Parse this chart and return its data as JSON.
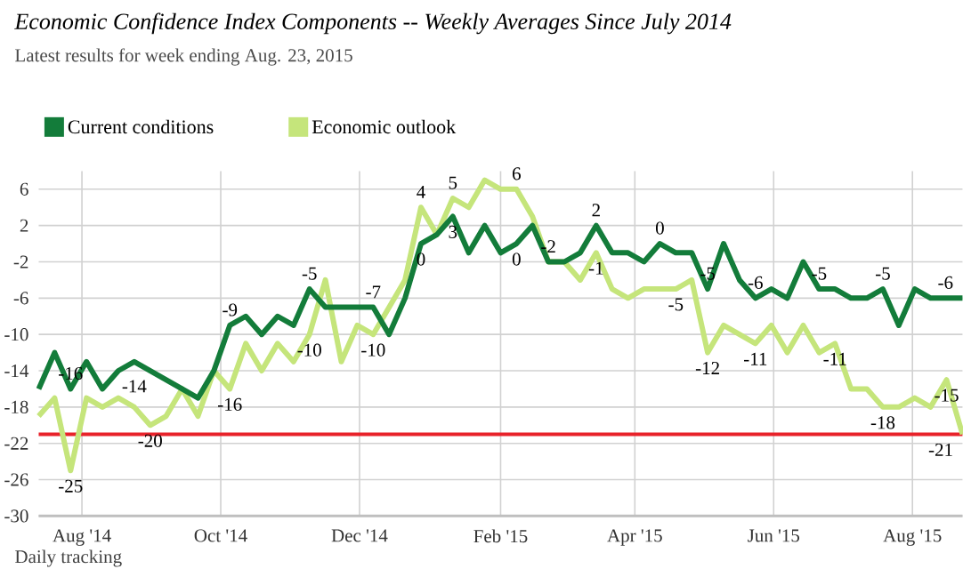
{
  "chart_data": {
    "type": "line",
    "title": "Economic Confidence Index Components -- Weekly Averages Since July 2014",
    "subtitle": "Latest results for week ending Aug. 23, 2015",
    "x": [
      "2014-07-13",
      "2014-07-20",
      "2014-07-27",
      "2014-08-03",
      "2014-08-10",
      "2014-08-17",
      "2014-08-24",
      "2014-08-31",
      "2014-09-07",
      "2014-09-14",
      "2014-09-21",
      "2014-09-28",
      "2014-10-05",
      "2014-10-12",
      "2014-10-19",
      "2014-10-26",
      "2014-11-02",
      "2014-11-09",
      "2014-11-16",
      "2014-11-23",
      "2014-11-30",
      "2014-12-07",
      "2014-12-14",
      "2014-12-21",
      "2014-12-28",
      "2015-01-04",
      "2015-01-11",
      "2015-01-18",
      "2015-01-25",
      "2015-02-01",
      "2015-02-08",
      "2015-02-15",
      "2015-02-22",
      "2015-03-01",
      "2015-03-08",
      "2015-03-15",
      "2015-03-22",
      "2015-03-29",
      "2015-04-05",
      "2015-04-12",
      "2015-04-19",
      "2015-04-26",
      "2015-05-03",
      "2015-05-10",
      "2015-05-17",
      "2015-05-24",
      "2015-05-31",
      "2015-06-07",
      "2015-06-14",
      "2015-06-21",
      "2015-06-28",
      "2015-07-05",
      "2015-07-12",
      "2015-07-19",
      "2015-07-26",
      "2015-08-02",
      "2015-08-09",
      "2015-08-16",
      "2015-08-23"
    ],
    "series": [
      {
        "name": "Current conditions",
        "color": "#137c3a",
        "values": [
          -16,
          -12,
          -16,
          -13,
          -16,
          -14,
          -13,
          -14,
          -15,
          -16,
          -17,
          -14,
          -9,
          -8,
          -10,
          -8,
          -9,
          -5,
          -7,
          -7,
          -7,
          -7,
          -10,
          -6,
          0,
          1,
          3,
          -1,
          2,
          -1,
          0,
          2,
          -2,
          -2,
          -1,
          2,
          -1,
          -1,
          -2,
          0,
          -1,
          -1,
          -5,
          0,
          -4,
          -6,
          -5,
          -6,
          -2,
          -5,
          -5,
          -6,
          -6,
          -5,
          -9,
          -5,
          -6,
          -6,
          -6
        ]
      },
      {
        "name": "Economic outlook",
        "color": "#c5e57b",
        "values": [
          -19,
          -17,
          -25,
          -17,
          -18,
          -17,
          -18,
          -20,
          -19,
          -16,
          -19,
          -14,
          -16,
          -11,
          -14,
          -11,
          -13,
          -10,
          -4,
          -13,
          -9,
          -10,
          -7,
          -4,
          4,
          1,
          5,
          4,
          7,
          6,
          6,
          3,
          -2,
          -2,
          -4,
          -1,
          -5,
          -6,
          -5,
          -5,
          -5,
          -4,
          -12,
          -9,
          -10,
          -11,
          -9,
          -12,
          -9,
          -12,
          -11,
          -16,
          -16,
          -18,
          -18,
          -17,
          -18,
          -15,
          -21
        ]
      }
    ],
    "xlim": [
      "2014-07-13",
      "2015-08-23"
    ],
    "xticks": [
      {
        "value": "2014-08-01",
        "label": "Aug '14"
      },
      {
        "value": "2014-10-01",
        "label": "Oct '14"
      },
      {
        "value": "2014-12-01",
        "label": "Dec '14"
      },
      {
        "value": "2015-02-01",
        "label": "Feb '15"
      },
      {
        "value": "2015-04-01",
        "label": "Apr '15"
      },
      {
        "value": "2015-06-01",
        "label": "Jun '15"
      },
      {
        "value": "2015-08-01",
        "label": "Aug '15"
      }
    ],
    "ylim": [
      -30,
      8
    ],
    "yticks": [
      -30,
      -26,
      -22,
      -18,
      -14,
      -10,
      -6,
      -2,
      2,
      6
    ],
    "grid": true,
    "legend": "top left",
    "ref_lines": [
      {
        "axis": "y",
        "value": -21,
        "color": "#e8222a"
      }
    ],
    "annotations": [
      {
        "text": "-16",
        "x": "2014-07-27",
        "y": -16
      },
      {
        "text": "-25",
        "x": "2014-07-27",
        "y": -25
      },
      {
        "text": "-14",
        "x": "2014-08-24",
        "y": -14
      },
      {
        "text": "-20",
        "x": "2014-08-31",
        "y": -20
      },
      {
        "text": "-9",
        "x": "2014-10-05",
        "y": -9
      },
      {
        "text": "-16",
        "x": "2014-10-05",
        "y": -16
      },
      {
        "text": "-5",
        "x": "2014-11-09",
        "y": -5
      },
      {
        "text": "-10",
        "x": "2014-11-09",
        "y": -10
      },
      {
        "text": "-7",
        "x": "2014-12-07",
        "y": -7
      },
      {
        "text": "-10",
        "x": "2014-12-07",
        "y": -10
      },
      {
        "text": "4",
        "x": "2014-12-28",
        "y": 4
      },
      {
        "text": "0",
        "x": "2014-12-28",
        "y": 0
      },
      {
        "text": "5",
        "x": "2015-01-11",
        "y": 5
      },
      {
        "text": "3",
        "x": "2015-01-11",
        "y": 3
      },
      {
        "text": "6",
        "x": "2015-02-08",
        "y": 6
      },
      {
        "text": "0",
        "x": "2015-02-08",
        "y": 0
      },
      {
        "text": "-2",
        "x": "2015-02-22",
        "y": -2
      },
      {
        "text": "2",
        "x": "2015-03-15",
        "y": 2
      },
      {
        "text": "-1",
        "x": "2015-03-15",
        "y": -1
      },
      {
        "text": "0",
        "x": "2015-04-12",
        "y": 0
      },
      {
        "text": "-5",
        "x": "2015-04-19",
        "y": -5
      },
      {
        "text": "-5",
        "x": "2015-05-03",
        "y": -5
      },
      {
        "text": "-12",
        "x": "2015-05-03",
        "y": -12
      },
      {
        "text": "-6",
        "x": "2015-05-24",
        "y": -6
      },
      {
        "text": "-11",
        "x": "2015-05-24",
        "y": -11
      },
      {
        "text": "-5",
        "x": "2015-06-21",
        "y": -5
      },
      {
        "text": "-11",
        "x": "2015-06-28",
        "y": -11
      },
      {
        "text": "-5",
        "x": "2015-07-19",
        "y": -5
      },
      {
        "text": "-18",
        "x": "2015-07-19",
        "y": -18
      },
      {
        "text": "-15",
        "x": "2015-08-16",
        "y": -15
      },
      {
        "text": "-6",
        "x": "2015-08-23",
        "y": -6
      },
      {
        "text": "-21",
        "x": "2015-08-23",
        "y": -21
      },
      "Daily tracking"
    ]
  }
}
